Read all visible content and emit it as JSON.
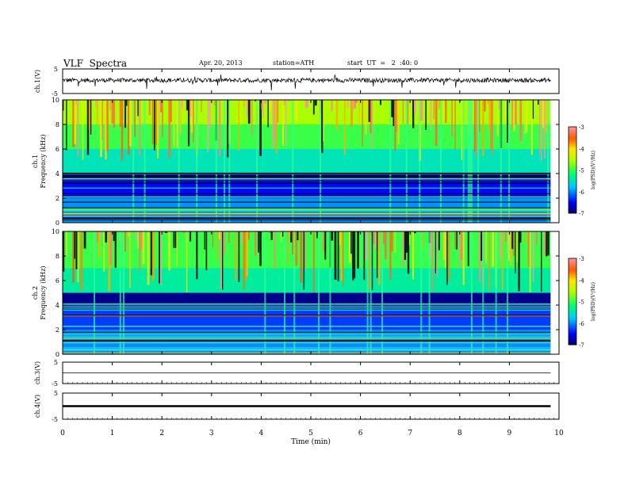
{
  "header": {
    "title": "VLF  Spectra",
    "date": "Apr. 20, 2013",
    "station": "station=ATH",
    "start": "start  UT  =   2  :40: 0"
  },
  "chart_data": [
    {
      "type": "line",
      "panel": "ch1-waveform",
      "ylabel": "ch.1(V)",
      "ylim": [
        -5,
        5
      ],
      "yticks": [
        "5",
        "-5"
      ],
      "xlim": [
        0,
        10
      ],
      "x_end": 9.83,
      "baseline": 0.3,
      "noise_band": [
        -0.8,
        1.0
      ],
      "spike_range": [
        -3.8,
        3.0
      ]
    },
    {
      "type": "heatmap",
      "panel": "ch1-spectrogram",
      "ylabel_outer": "ch.1",
      "ylabel": "Frequency  (kHz)",
      "ylim": [
        0,
        10
      ],
      "yticks": [
        "0",
        "2",
        "4",
        "6",
        "8",
        "10"
      ],
      "xlim": [
        0,
        10
      ],
      "colorbar": {
        "label": "log(PSD)(V²/Hz)",
        "range": [
          -7,
          -3
        ],
        "ticks": [
          "-3",
          "-4",
          "-5",
          "-6",
          "-7"
        ]
      },
      "bands": [
        {
          "from": 0,
          "to": 2,
          "log_psd": -6.0
        },
        {
          "from": 2,
          "to": 3.5,
          "log_psd": -6.5
        },
        {
          "from": 3.5,
          "to": 4,
          "log_psd": -7.0
        },
        {
          "from": 4,
          "to": 6,
          "log_psd": -5.5
        },
        {
          "from": 6,
          "to": 8,
          "log_psd": -5.0
        },
        {
          "from": 8,
          "to": 10,
          "log_psd": -4.6
        }
      ]
    },
    {
      "type": "heatmap",
      "panel": "ch2-spectrogram",
      "ylabel_outer": "ch.2",
      "ylabel": "Frequency  (kHz)",
      "ylim": [
        0,
        10
      ],
      "yticks": [
        "0",
        "2",
        "4",
        "6",
        "8",
        "10"
      ],
      "xlim": [
        0,
        10
      ],
      "colorbar": {
        "label": "log(PSD)(V²/Hz)",
        "range": [
          -7,
          -3
        ],
        "ticks": [
          "-3",
          "-4",
          "-5",
          "-6",
          "-7"
        ]
      },
      "bands": [
        {
          "from": 0,
          "to": 2,
          "log_psd": -6.0
        },
        {
          "from": 2,
          "to": 3.7,
          "log_psd": -6.3
        },
        {
          "from": 3.7,
          "to": 5,
          "log_psd": -6.9
        },
        {
          "from": 5,
          "to": 7,
          "log_psd": -5.4
        },
        {
          "from": 7,
          "to": 10,
          "log_psd": -5.0
        }
      ]
    },
    {
      "type": "line",
      "panel": "ch3-waveform",
      "ylabel": "ch.3(V)",
      "ylim": [
        -5,
        5
      ],
      "yticks": [
        "5",
        "-5"
      ],
      "xlim": [
        0,
        10
      ],
      "x_end": 9.83,
      "baseline": 0.0
    },
    {
      "type": "line",
      "panel": "ch4-waveform",
      "ylabel": "ch.4(V)",
      "ylim": [
        -5,
        5
      ],
      "yticks": [
        "5",
        "-5"
      ],
      "xlim": [
        0,
        10
      ],
      "x_end": 9.83,
      "baseline": 0.0,
      "xlabel": "Time  (min)",
      "xticks": [
        "0",
        "1",
        "2",
        "3",
        "4",
        "5",
        "6",
        "7",
        "8",
        "9",
        "10"
      ]
    }
  ]
}
